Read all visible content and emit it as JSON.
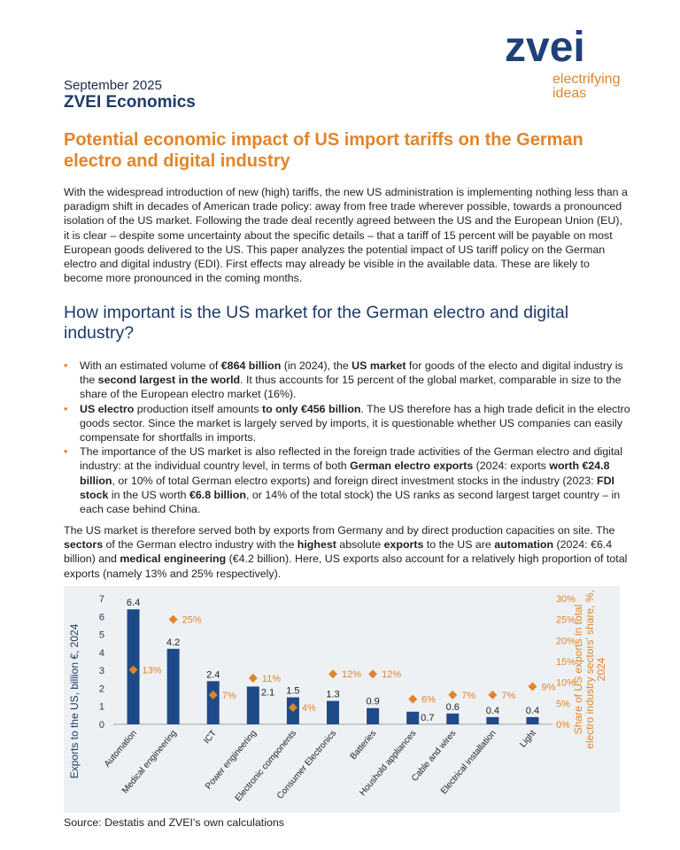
{
  "logo": {
    "word": "zvei",
    "tagline_line1": "electrifying",
    "tagline_line2": "ideas",
    "brand_color": "#1f3f78",
    "accent_color": "#e0852a"
  },
  "header": {
    "date": "September 2025",
    "series": "ZVEI Economics"
  },
  "title": "Potential economic impact of US import tariffs on the German electro and digital industry",
  "intro": "With the widespread introduction of new (high) tariffs, the new US administration is implementing nothing less than a paradigm shift in decades of American trade policy: away from free trade wherever possible, towards a pronounced isolation of the US market. Following the trade deal recently agreed between the US and the European Union (EU), it is clear – despite some uncertainty about the specific details – that a tariff of 15 percent will be payable on most European goods delivered to the US. This paper analyzes the potential impact of US tariff policy on the German electro and digital industry (EDI). First effects may already be visible in the available data. These are likely to become more pronounced in the coming months.",
  "section_heading": "How important is the US market for the German electro and digital industry?",
  "bullets": [
    [
      {
        "t": "With an estimated volume of ",
        "b": false
      },
      {
        "t": "€864 billion",
        "b": true
      },
      {
        "t": " (in 2024), the ",
        "b": false
      },
      {
        "t": "US market",
        "b": true
      },
      {
        "t": " for goods of the electo and digital industry is the ",
        "b": false
      },
      {
        "t": "second largest in the world",
        "b": true
      },
      {
        "t": ". It thus accounts for 15 percent of the global market, comparable in size to the share of the European electro market (16%).",
        "b": false
      }
    ],
    [
      {
        "t": "US electro",
        "b": true
      },
      {
        "t": " production itself amounts ",
        "b": false
      },
      {
        "t": "to only €456 billion",
        "b": true
      },
      {
        "t": ". The US therefore has a high trade deficit in the electro goods sector. Since the market is largely served by imports, it is questionable whether US companies can easily compensate for shortfalls in imports.",
        "b": false
      }
    ],
    [
      {
        "t": "The importance of the US market is also reflected in the foreign trade activities of the German electro and digital industry: at the individual country level, in terms of both ",
        "b": false
      },
      {
        "t": "German electro exports",
        "b": true
      },
      {
        "t": " (2024: exports ",
        "b": false
      },
      {
        "t": "worth €24.8 billion",
        "b": true
      },
      {
        "t": ", or 10% of total German electro exports) and foreign direct investment stocks in the industry (2023: ",
        "b": false
      },
      {
        "t": "FDI stock",
        "b": true
      },
      {
        "t": " in the US worth ",
        "b": false
      },
      {
        "t": "€6.8 billion",
        "b": true
      },
      {
        "t": ", or 14% of the total stock) the US ranks as second largest target country – in each case behind China.",
        "b": false
      }
    ]
  ],
  "paragraph2": [
    {
      "t": "The US market is therefore served both by exports from Germany and by direct production capacities on site. The ",
      "b": false
    },
    {
      "t": "sectors",
      "b": true
    },
    {
      "t": " of the German electro industry with the ",
      "b": false
    },
    {
      "t": "highest",
      "b": true
    },
    {
      "t": " absolute ",
      "b": false
    },
    {
      "t": "exports",
      "b": true
    },
    {
      "t": " to the US are ",
      "b": false
    },
    {
      "t": "automation",
      "b": true
    },
    {
      "t": " (2024: €6.4 billion) and ",
      "b": false
    },
    {
      "t": "medical engineering",
      "b": true
    },
    {
      "t": " (€4.2 billion). Here, US exports also account for a relatively high proportion of total exports (namely 13% and 25% respectively).",
      "b": false
    }
  ],
  "chart_data": {
    "type": "bar",
    "categories": [
      "Automation",
      "Medical engineering",
      "ICT",
      "Power engineering",
      "Electronic components",
      "Consumer Electronics",
      "Batteries",
      "Houshold appliances",
      "Cable and wires",
      "Electrical installation",
      "Light"
    ],
    "bar_values": [
      6.4,
      4.2,
      2.4,
      2.1,
      1.5,
      1.3,
      0.9,
      0.7,
      0.6,
      0.4,
      0.4
    ],
    "bar_labels": [
      "6.4",
      "4.2",
      "2.4",
      "2.1",
      "1.5",
      "1.3",
      "0.9",
      "0.7",
      "0.6",
      "0.4",
      "0.4"
    ],
    "share_values": [
      13,
      25,
      7,
      11,
      4,
      12,
      12,
      6,
      7,
      7,
      9
    ],
    "share_labels": [
      "13%",
      "25%",
      "7%",
      "11%",
      "4%",
      "12%",
      "12%",
      "6%",
      "7%",
      "7%",
      "9%"
    ],
    "ylabel": "Exports to the US, billion €, 2024",
    "y2label": "Share of US exports in total electro industry sectors' share, %, 2024",
    "ylim": [
      0,
      7
    ],
    "y2lim": [
      0,
      30
    ],
    "yticks": [
      "0",
      "1",
      "2",
      "3",
      "4",
      "5",
      "6",
      "7"
    ],
    "y2ticks": [
      "0%",
      "5%",
      "10%",
      "15%",
      "20%",
      "25%",
      "30%"
    ],
    "bar_color": "#1f4a8a",
    "marker_color": "#e0852a",
    "background": "#eef1f4"
  },
  "source": "Source: Destatis and ZVEI's own calculations"
}
